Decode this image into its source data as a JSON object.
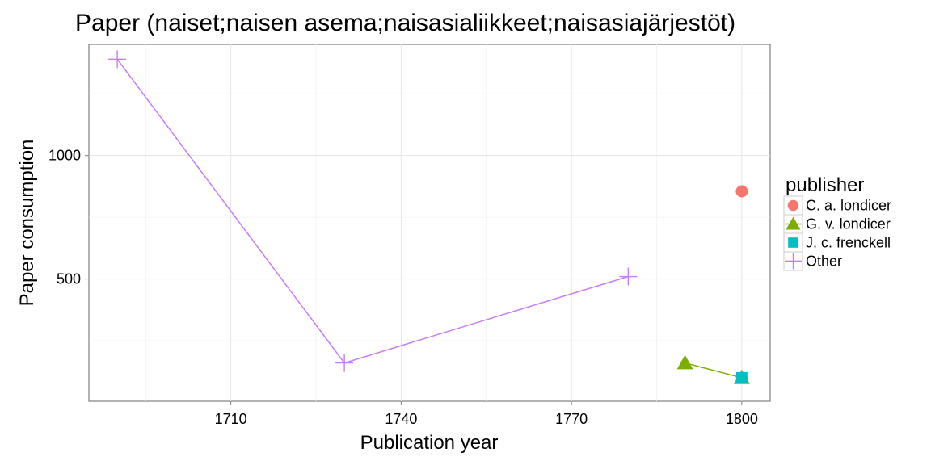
{
  "chart_data": {
    "type": "line",
    "title": "Paper (naiset;naisen asema;naisasialiikkeet;naisasiajärjestöt)",
    "xlabel": "Publication year",
    "ylabel": "Paper consumption",
    "xlim": [
      1685,
      1805
    ],
    "ylim": [
      5,
      1450
    ],
    "x_ticks": [
      1710,
      1740,
      1770,
      1800
    ],
    "y_ticks": [
      500,
      1000
    ],
    "grid": true,
    "legend": {
      "title": "publisher",
      "position": "right"
    },
    "series": [
      {
        "name": "C. a. londicer",
        "color": "#F8766D",
        "marker": "circle",
        "points": [
          [
            1800,
            855
          ]
        ]
      },
      {
        "name": "G. v. londicer",
        "color": "#7CAE00",
        "marker": "triangle",
        "points": [
          [
            1790,
            160
          ],
          [
            1800,
            100
          ]
        ]
      },
      {
        "name": "J. c. frenckell",
        "color": "#00BFC4",
        "marker": "square",
        "points": [
          [
            1800,
            100
          ]
        ]
      },
      {
        "name": "Other",
        "color": "#C77CFF",
        "marker": "plus",
        "points": [
          [
            1690,
            1390
          ],
          [
            1730,
            160
          ],
          [
            1780,
            510
          ]
        ]
      }
    ]
  }
}
